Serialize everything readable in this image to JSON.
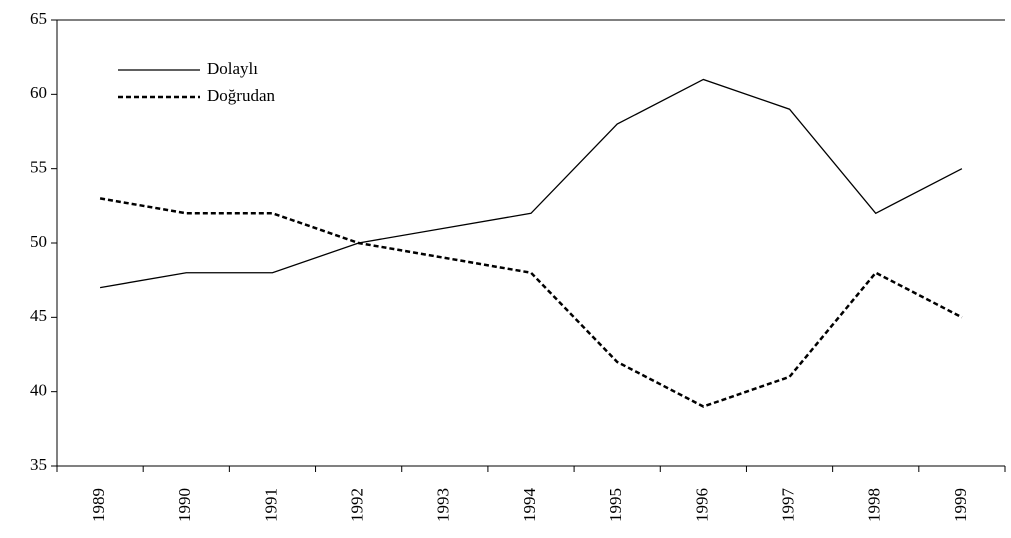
{
  "chart_data": {
    "type": "line",
    "categories": [
      "1989",
      "1990",
      "1991",
      "1992",
      "1993",
      "1994",
      "1995",
      "1996",
      "1997",
      "1998",
      "1999"
    ],
    "series": [
      {
        "name": "Dolaylı",
        "color": "#000000",
        "dash": "solid",
        "values": [
          47,
          48,
          48,
          50,
          51,
          52,
          58,
          61,
          59,
          52,
          55
        ]
      },
      {
        "name": "Doğrudan",
        "color": "#000000",
        "dash": "dotted",
        "values": [
          53,
          52,
          52,
          50,
          49,
          48,
          42,
          39,
          41,
          48,
          45
        ]
      }
    ],
    "ylim": [
      35,
      65
    ],
    "yticks": [
      35,
      40,
      45,
      50,
      55,
      60,
      65
    ],
    "grid": false,
    "legend": "upper left"
  }
}
